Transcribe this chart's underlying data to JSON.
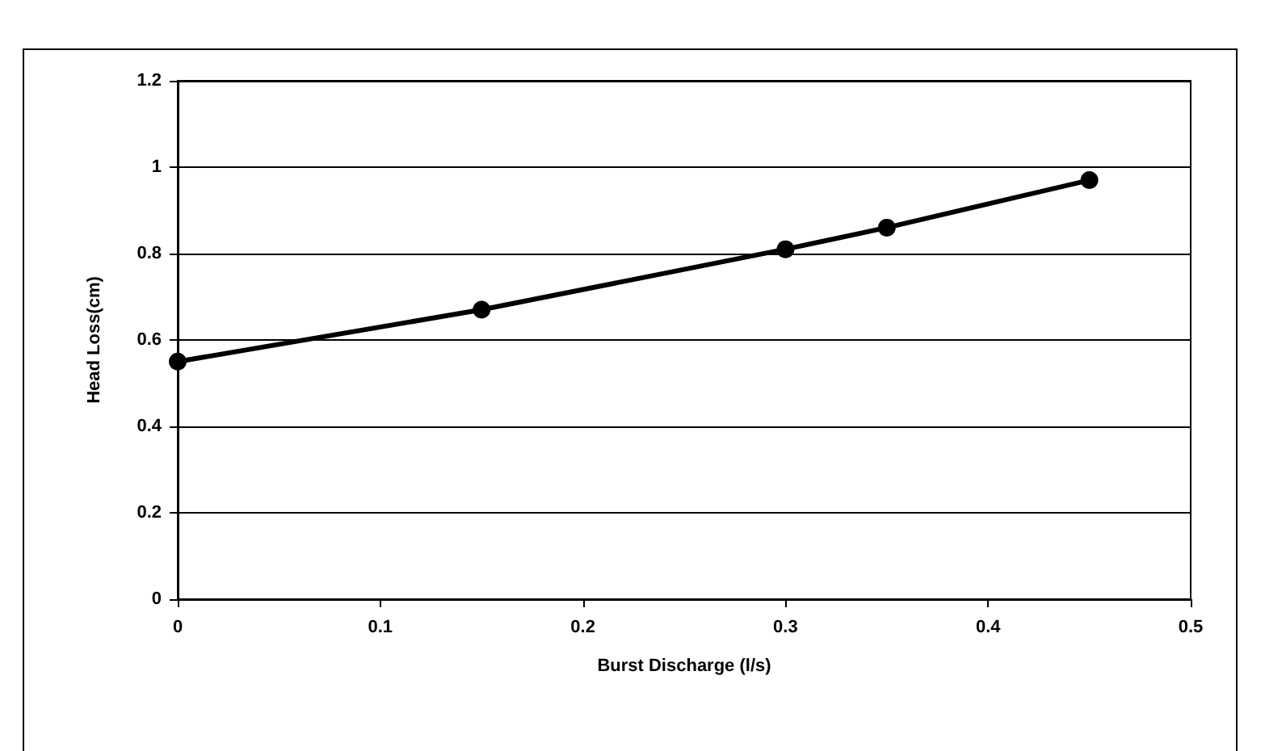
{
  "chart_data": {
    "type": "line",
    "xlabel": "Burst Discharge (l/s)",
    "ylabel": "Head Loss(cm)",
    "x": [
      0,
      0.15,
      0.3,
      0.35,
      0.45
    ],
    "series": [
      {
        "color": "#000000",
        "values": [
          0.55,
          0.67,
          0.81,
          0.86,
          0.97
        ]
      }
    ],
    "xlim": [
      0,
      0.5
    ],
    "xticks": [
      0,
      0.1,
      0.2,
      0.3,
      0.4,
      0.5
    ],
    "ylim": [
      0,
      1.2
    ],
    "yticks": [
      0,
      0.2,
      0.4,
      0.6,
      0.8,
      1,
      1.2
    ],
    "grid": "y",
    "marker": "circle",
    "line_style": "solid"
  }
}
